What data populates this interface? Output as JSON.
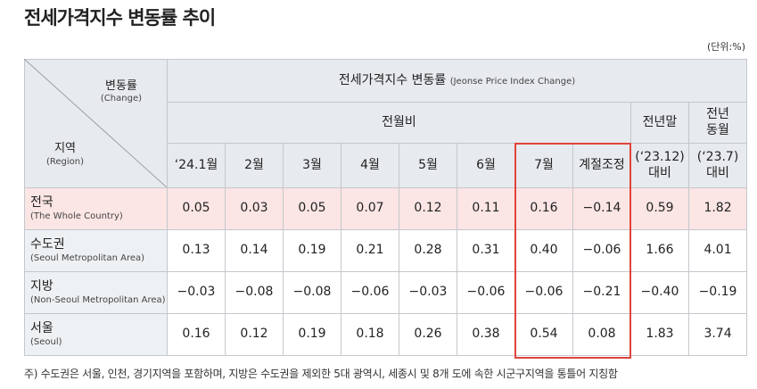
{
  "title": "전세가격지수 변동률 추이",
  "unit": "(단위:%)",
  "table": {
    "corner": {
      "top": "변동률",
      "top_en": "(Change)",
      "bottom": "지역",
      "bottom_en": "(Region)"
    },
    "group": {
      "label": "전세가격지수 변동률",
      "label_en": "(Jeonse Price Index Change)"
    },
    "subgroup": "전월비",
    "columns": [
      "‘24.1월",
      "2월",
      "3월",
      "4월",
      "5월",
      "6월",
      "7월",
      "계절조정"
    ],
    "extra_columns": [
      {
        "top": [
          "전년말"
        ],
        "bottom": [
          "(‘23.12)",
          "대비"
        ]
      },
      {
        "top": [
          "전년",
          "동월"
        ],
        "bottom": [
          "(‘23.7)",
          "대비"
        ]
      }
    ],
    "rows": [
      {
        "name": "전국",
        "name_en": "(The Whole Country)",
        "values": [
          "0.05",
          "0.03",
          "0.05",
          "0.07",
          "0.12",
          "0.11",
          "0.16",
          "−0.14",
          "0.59",
          "1.82"
        ]
      },
      {
        "name": "수도권",
        "name_en": "(Seoul Metropolitan Area)",
        "values": [
          "0.13",
          "0.14",
          "0.19",
          "0.21",
          "0.28",
          "0.31",
          "0.40",
          "−0.06",
          "1.66",
          "4.01"
        ]
      },
      {
        "name": "지방",
        "name_en": "(Non-Seoul Metropolitan Area)",
        "values": [
          "−0.03",
          "−0.08",
          "−0.08",
          "−0.06",
          "−0.03",
          "−0.06",
          "−0.06",
          "−0.21",
          "−0.40",
          "−0.19"
        ]
      },
      {
        "name": "서울",
        "name_en": "(Seoul)",
        "values": [
          "0.16",
          "0.12",
          "0.19",
          "0.18",
          "0.26",
          "0.38",
          "0.54",
          "0.08",
          "1.83",
          "3.74"
        ]
      }
    ]
  },
  "footnote": "주) 수도권은 서울, 인천, 경기지역을 포함하며, 지방은 수도권을 제외한 5대 광역시, 세종시 및 8개 도에 속한 시군구지역을 통틀어 지칭함"
}
